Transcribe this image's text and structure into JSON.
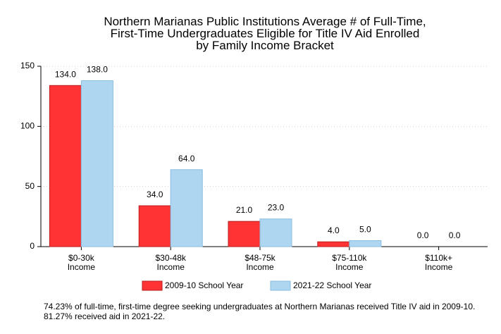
{
  "chart_data": {
    "type": "bar",
    "title_lines": [
      "Northern Marianas Public Institutions Average # of Full-Time,",
      "First-Time Undergraduates Eligible for Title IV Aid Enrolled",
      "by Family Income Bracket"
    ],
    "categories": [
      [
        "$0-30k",
        "Income"
      ],
      [
        "$30-48k",
        "Income"
      ],
      [
        "$48-75k",
        "Income"
      ],
      [
        "$75-110k",
        "Income"
      ],
      [
        "$110k+",
        "Income"
      ]
    ],
    "series": [
      {
        "name": "2009-10 School Year",
        "color": "#ff3333",
        "stroke": "#b81e1e",
        "values": [
          134.0,
          34.0,
          21.0,
          4.0,
          0.0
        ]
      },
      {
        "name": "2021-22 School Year",
        "color": "#aed6f1",
        "stroke": "#88bde0",
        "values": [
          138.0,
          64.0,
          23.0,
          5.0,
          0.0
        ]
      }
    ],
    "yticks": [
      0,
      50,
      100,
      150
    ],
    "ylim": [
      0,
      150
    ],
    "grid": "horizontal dotted",
    "legend_position": "bottom",
    "value_format_decimals": 1
  },
  "footnote": "74.23% of full-time, first-time degree seeking undergraduates at Northern Marianas received Title IV aid in 2009-10. 81.27% received aid in 2021-22."
}
